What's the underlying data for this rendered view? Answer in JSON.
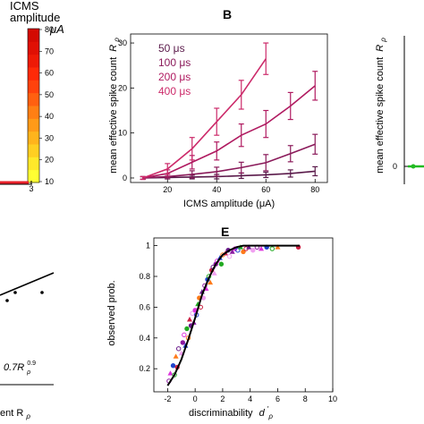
{
  "colors": {
    "b_series": [
      "#5a1a4a",
      "#8a1a5a",
      "#b01a60",
      "#cc2a6a"
    ],
    "colorbar": [
      "#ffff33",
      "#ffe82a",
      "#ffcf22",
      "#ffb41c",
      "#ff9a18",
      "#ff7f14",
      "#ff6010",
      "#ff420c",
      "#ff2a08",
      "#ee1a06",
      "#e01004",
      "#d40a02"
    ],
    "red_line": "#e8202a",
    "green": "#22bb22"
  },
  "panel_a_fragment": {
    "title_line1": "ICMS",
    "title_line2": "amplitude",
    "unit": "μA",
    "colorbar_ticks": [
      "80",
      "70",
      "60",
      "50",
      "40",
      "30",
      "20",
      "10"
    ],
    "x_tick": "3"
  },
  "panel_b": {
    "letter": "B",
    "chart_data": {
      "type": "line",
      "x": [
        10,
        20,
        30,
        40,
        50,
        60,
        70,
        80
      ],
      "xlabel": "ICMS amplitude (μA)",
      "ylabel": "mean effective spike count",
      "ylabel_symbol": "R",
      "ylabel_sub": "ρ",
      "xlim": [
        5,
        85
      ],
      "ylim": [
        -1,
        32
      ],
      "xticks": [
        "20",
        "40",
        "60",
        "80"
      ],
      "yticks": [
        "0",
        "10",
        "20",
        "30"
      ],
      "legend_placement": "top-left",
      "series": [
        {
          "name": "50 μs",
          "x": [
            10,
            20,
            30,
            40,
            50,
            60,
            70,
            80
          ],
          "y": [
            0,
            0.1,
            0.2,
            0.3,
            0.5,
            0.7,
            1.0,
            1.5
          ],
          "err": [
            0.3,
            0.3,
            0.4,
            0.5,
            0.6,
            0.6,
            0.8,
            1.0
          ]
        },
        {
          "name": "100 μs",
          "x": [
            10,
            20,
            30,
            40,
            50,
            60,
            70,
            80
          ],
          "y": [
            0,
            0.3,
            0.8,
            1.4,
            2.3,
            3.4,
            5.4,
            7.5
          ],
          "err": [
            0.3,
            0.5,
            0.8,
            1.0,
            1.2,
            1.8,
            1.8,
            2.2
          ]
        },
        {
          "name": "200 μs",
          "x": [
            10,
            20,
            30,
            40,
            50,
            60,
            70,
            80
          ],
          "y": [
            0,
            1.0,
            3.5,
            6.0,
            9.5,
            12.0,
            16.0,
            20.5
          ],
          "err": [
            0.3,
            0.8,
            1.5,
            2.0,
            2.5,
            3.0,
            3.0,
            3.2
          ]
        },
        {
          "name": "400 μs",
          "x": [
            10,
            20,
            30,
            40,
            50,
            60
          ],
          "y": [
            0,
            2.0,
            6.5,
            12.5,
            18.5,
            26.5
          ],
          "err": [
            0.3,
            1.2,
            2.5,
            3.0,
            3.2,
            3.5
          ]
        }
      ]
    }
  },
  "panel_c_fragment": {
    "ylabel": "mean effective spike count",
    "ylabel_symbol": "R",
    "ylabel_sub": "ρ",
    "y_tick": "0"
  },
  "panel_d_fragment": {
    "formula": "0.7R",
    "formula_sub": "ρ",
    "formula_sup": "0.9",
    "xlabel_tail": "ent R",
    "xlabel_sub": "ρ"
  },
  "panel_e": {
    "letter": "E",
    "chart_data": {
      "type": "scatter",
      "xlabel": "discriminability",
      "xlabel_symbol": "d",
      "xlabel_sub": "ρ",
      "xlabel_prime": "′",
      "ylabel": "observed prob.",
      "xlim": [
        -3,
        10
      ],
      "ylim": [
        0.05,
        1.05
      ],
      "xticks": [
        "-2",
        "0",
        "2",
        "4",
        "6",
        "8",
        "10"
      ],
      "yticks": [
        "0.2",
        "0.4",
        "0.6",
        "0.8",
        "1"
      ],
      "fit_curve": {
        "x": [
          -2,
          -1.5,
          -1,
          -0.5,
          0,
          0.5,
          1,
          1.5,
          2,
          2.5,
          3,
          3.5,
          4,
          5,
          6,
          7,
          7.6
        ],
        "y": [
          0.09,
          0.16,
          0.26,
          0.39,
          0.53,
          0.68,
          0.79,
          0.88,
          0.94,
          0.97,
          0.99,
          1.0,
          1.0,
          1.0,
          1.0,
          1.0,
          1.0
        ]
      },
      "points": [
        [
          -1.9,
          0.12
        ],
        [
          -1.8,
          0.17
        ],
        [
          -1.6,
          0.22
        ],
        [
          -1.5,
          0.16
        ],
        [
          -1.4,
          0.28
        ],
        [
          -1.3,
          0.21
        ],
        [
          -1.2,
          0.33
        ],
        [
          -1.0,
          0.3
        ],
        [
          -0.9,
          0.37
        ],
        [
          -0.8,
          0.42
        ],
        [
          -0.7,
          0.35
        ],
        [
          -0.6,
          0.46
        ],
        [
          -0.5,
          0.4
        ],
        [
          -0.4,
          0.52
        ],
        [
          -0.3,
          0.48
        ],
        [
          -0.2,
          0.56
        ],
        [
          -0.1,
          0.5
        ],
        [
          0.0,
          0.58
        ],
        [
          0.1,
          0.55
        ],
        [
          0.2,
          0.62
        ],
        [
          0.3,
          0.66
        ],
        [
          0.4,
          0.6
        ],
        [
          0.5,
          0.7
        ],
        [
          0.6,
          0.66
        ],
        [
          0.7,
          0.74
        ],
        [
          0.8,
          0.72
        ],
        [
          0.9,
          0.78
        ],
        [
          1.0,
          0.8
        ],
        [
          1.1,
          0.76
        ],
        [
          1.2,
          0.84
        ],
        [
          1.3,
          0.86
        ],
        [
          1.4,
          0.82
        ],
        [
          1.5,
          0.88
        ],
        [
          1.6,
          0.9
        ],
        [
          1.8,
          0.92
        ],
        [
          1.9,
          0.88
        ],
        [
          2.0,
          0.94
        ],
        [
          2.2,
          0.95
        ],
        [
          2.4,
          0.97
        ],
        [
          2.5,
          0.93
        ],
        [
          2.7,
          0.96
        ],
        [
          2.9,
          0.98
        ],
        [
          3.1,
          0.97
        ],
        [
          3.3,
          0.99
        ],
        [
          3.5,
          0.96
        ],
        [
          3.7,
          0.98
        ],
        [
          3.9,
          0.99
        ],
        [
          4.2,
          0.97
        ],
        [
          4.5,
          0.99
        ],
        [
          4.8,
          0.98
        ],
        [
          5.2,
          0.99
        ],
        [
          5.6,
          0.98
        ],
        [
          6.0,
          0.99
        ],
        [
          7.5,
          0.99
        ]
      ],
      "point_colors": [
        "#8a1aa0",
        "#dd33dd",
        "#2244cc",
        "#22aa22",
        "#ff7a1a",
        "#cc2244",
        "#6a1a8a",
        "#f0a0f0"
      ]
    }
  }
}
